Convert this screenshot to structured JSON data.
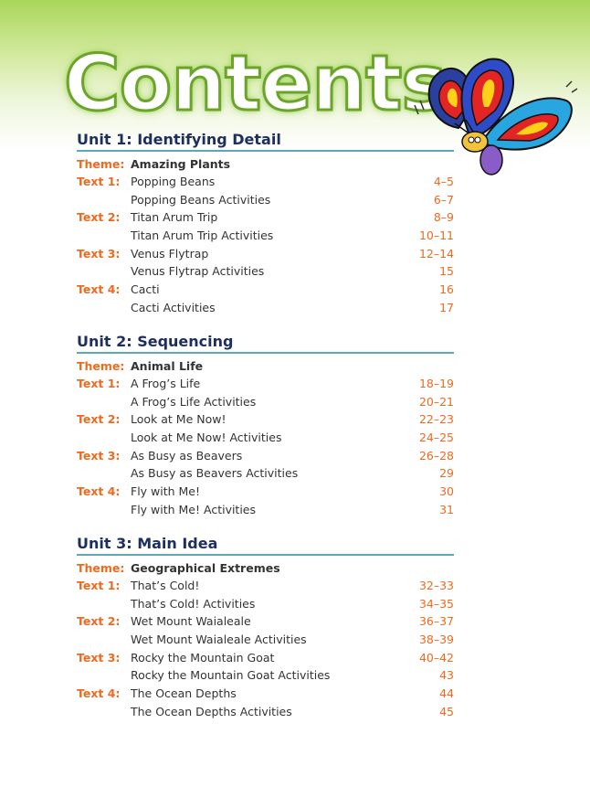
{
  "title": "Contents",
  "units": [
    {
      "heading": "Unit 1: Identifying Detail",
      "theme_label": "Theme:",
      "theme": "Amazing Plants",
      "rows": [
        {
          "label": "Text 1:",
          "title": "Popping Beans",
          "pages": "4–5"
        },
        {
          "label": "",
          "title": "Popping Beans Activities",
          "pages": "6–7"
        },
        {
          "label": "Text 2:",
          "title": "Titan Arum Trip",
          "pages": "8–9"
        },
        {
          "label": "",
          "title": "Titan Arum Trip Activities",
          "pages": "10–11"
        },
        {
          "label": "Text 3:",
          "title": "Venus Flytrap",
          "pages": "12–14"
        },
        {
          "label": "",
          "title": "Venus Flytrap Activities",
          "pages": "15"
        },
        {
          "label": "Text 4:",
          "title": "Cacti",
          "pages": "16"
        },
        {
          "label": "",
          "title": "Cacti Activities",
          "pages": "17"
        }
      ]
    },
    {
      "heading": "Unit 2: Sequencing",
      "theme_label": "Theme:",
      "theme": "Animal Life",
      "rows": [
        {
          "label": "Text 1:",
          "title": "A Frog’s Life",
          "pages": "18–19"
        },
        {
          "label": "",
          "title": "A Frog’s Life Activities",
          "pages": "20–21"
        },
        {
          "label": "Text 2:",
          "title": "Look at Me Now!",
          "pages": "22–23"
        },
        {
          "label": "",
          "title": "Look at Me Now! Activities",
          "pages": "24–25"
        },
        {
          "label": "Text 3:",
          "title": "As Busy as Beavers",
          "pages": "26–28"
        },
        {
          "label": "",
          "title": "As Busy as Beavers Activities",
          "pages": "29"
        },
        {
          "label": "Text 4:",
          "title": "Fly with Me!",
          "pages": "30"
        },
        {
          "label": "",
          "title": "Fly with Me! Activities",
          "pages": "31"
        }
      ]
    },
    {
      "heading": "Unit 3: Main Idea",
      "theme_label": "Theme:",
      "theme": "Geographical Extremes",
      "rows": [
        {
          "label": "Text 1:",
          "title": "That’s Cold!",
          "pages": "32–33"
        },
        {
          "label": "",
          "title": "That’s Cold! Activities",
          "pages": "34–35"
        },
        {
          "label": "Text 2:",
          "title": "Wet Mount Waialeale",
          "pages": "36–37"
        },
        {
          "label": "",
          "title": "Wet Mount Waialeale Activities",
          "pages": "38–39"
        },
        {
          "label": "Text 3:",
          "title": "Rocky the Mountain Goat",
          "pages": "40–42"
        },
        {
          "label": "",
          "title": "Rocky the Mountain Goat Activities",
          "pages": "43"
        },
        {
          "label": "Text 4:",
          "title": "The Ocean Depths",
          "pages": "44"
        },
        {
          "label": "",
          "title": "The Ocean Depths Activities",
          "pages": "45"
        }
      ]
    }
  ],
  "colors": {
    "unit_heading": "#1d2f5e",
    "theme": "#1a9093",
    "text_label": "#ee6a1f",
    "page_numbers": "#ee6a1f",
    "rule": "#5aa9b5"
  },
  "illustration": "butterfly-cartoon"
}
